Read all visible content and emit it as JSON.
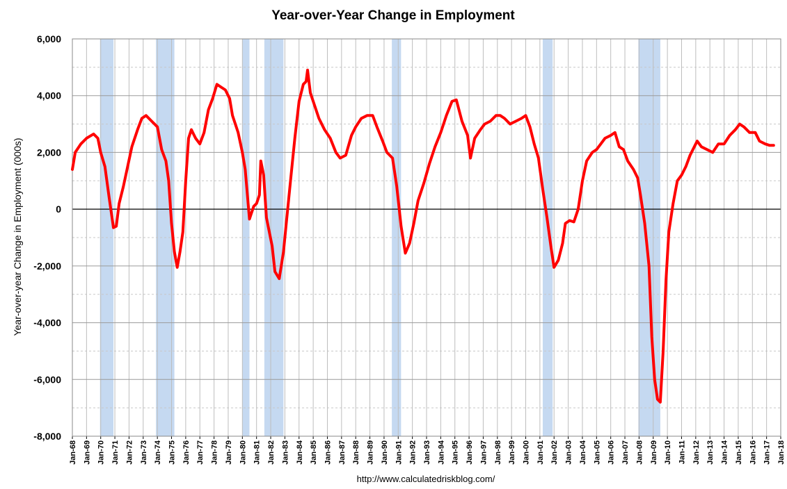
{
  "chart_data": {
    "type": "line",
    "title": "Year-over-Year Change in Employment",
    "y_label": "Year-over-year Change in Employment (000s)",
    "source": "http://www.calculatedriskblog.com/",
    "xlim": [
      1968,
      2018
    ],
    "ylim": [
      -8000,
      6000
    ],
    "yticks": [
      {
        "value": -8000,
        "label": "-8,000"
      },
      {
        "value": -6000,
        "label": "-6,000"
      },
      {
        "value": -4000,
        "label": "-4,000"
      },
      {
        "value": -2000,
        "label": "-2,000"
      },
      0,
      {
        "value": 2000,
        "label": "2,000"
      },
      {
        "value": 4000,
        "label": "4,000"
      },
      {
        "value": 6000,
        "label": "6,000"
      }
    ],
    "y_minor_ticks": [
      -7000,
      -5000,
      -3000,
      -1000,
      1000,
      3000,
      5000
    ],
    "xticks": [
      {
        "value": 1968,
        "label": "Jan-68"
      },
      {
        "value": 1969,
        "label": "Jan-69"
      },
      {
        "value": 1970,
        "label": "Jan-70"
      },
      {
        "value": 1971,
        "label": "Jan-71"
      },
      {
        "value": 1972,
        "label": "Jan-72"
      },
      {
        "value": 1973,
        "label": "Jan-73"
      },
      {
        "value": 1974,
        "label": "Jan-74"
      },
      {
        "value": 1975,
        "label": "Jan-75"
      },
      {
        "value": 1976,
        "label": "Jan-76"
      },
      {
        "value": 1977,
        "label": "Jan-77"
      },
      {
        "value": 1978,
        "label": "Jan-78"
      },
      {
        "value": 1979,
        "label": "Jan-79"
      },
      {
        "value": 1980,
        "label": "Jan-80"
      },
      {
        "value": 1981,
        "label": "Jan-81"
      },
      {
        "value": 1982,
        "label": "Jan-82"
      },
      {
        "value": 1983,
        "label": "Jan-83"
      },
      {
        "value": 1984,
        "label": "Jan-84"
      },
      {
        "value": 1985,
        "label": "Jan-85"
      },
      {
        "value": 1986,
        "label": "Jan-86"
      },
      {
        "value": 1987,
        "label": "Jan-87"
      },
      {
        "value": 1988,
        "label": "Jan-88"
      },
      {
        "value": 1989,
        "label": "Jan-89"
      },
      {
        "value": 1990,
        "label": "Jan-90"
      },
      {
        "value": 1991,
        "label": "Jan-91"
      },
      {
        "value": 1992,
        "label": "Jan-92"
      },
      {
        "value": 1993,
        "label": "Jan-93"
      },
      {
        "value": 1994,
        "label": "Jan-94"
      },
      {
        "value": 1995,
        "label": "Jan-95"
      },
      {
        "value": 1996,
        "label": "Jan-96"
      },
      {
        "value": 1997,
        "label": "Jan-97"
      },
      {
        "value": 1998,
        "label": "Jan-98"
      },
      {
        "value": 1999,
        "label": "Jan-99"
      },
      {
        "value": 2000,
        "label": "Jan-00"
      },
      {
        "value": 2001,
        "label": "Jan-01"
      },
      {
        "value": 2002,
        "label": "Jan-02"
      },
      {
        "value": 2003,
        "label": "Jan-03"
      },
      {
        "value": 2004,
        "label": "Jan-04"
      },
      {
        "value": 2005,
        "label": "Jan-05"
      },
      {
        "value": 2006,
        "label": "Jan-06"
      },
      {
        "value": 2007,
        "label": "Jan-07"
      },
      {
        "value": 2008,
        "label": "Jan-08"
      },
      {
        "value": 2009,
        "label": "Jan-09"
      },
      {
        "value": 2010,
        "label": "Jan-10"
      },
      {
        "value": 2011,
        "label": "Jan-11"
      },
      {
        "value": 2012,
        "label": "Jan-12"
      },
      {
        "value": 2013,
        "label": "Jan-13"
      },
      {
        "value": 2014,
        "label": "Jan-14"
      },
      {
        "value": 2015,
        "label": "Jan-15"
      },
      {
        "value": 2016,
        "label": "Jan-16"
      },
      {
        "value": 2017,
        "label": "Jan-17"
      },
      {
        "value": 2018,
        "label": "Jan-18"
      }
    ],
    "grid": true,
    "recession_color": "#c5d9f1",
    "recessions": [
      [
        1969.95,
        1970.9
      ],
      [
        1973.9,
        1975.2
      ],
      [
        1980.0,
        1980.5
      ],
      [
        1981.55,
        1982.9
      ],
      [
        1990.55,
        1991.2
      ],
      [
        2001.2,
        2001.9
      ],
      [
        2007.95,
        2009.5
      ]
    ],
    "x": [
      1968.0,
      1968.2,
      1968.6,
      1969.0,
      1969.5,
      1969.8,
      1970.0,
      1970.3,
      1970.6,
      1970.8,
      1970.9,
      1971.1,
      1971.3,
      1971.6,
      1971.9,
      1972.2,
      1972.6,
      1972.9,
      1973.2,
      1973.6,
      1974.0,
      1974.3,
      1974.6,
      1974.8,
      1975.0,
      1975.2,
      1975.4,
      1975.6,
      1975.8,
      1976.0,
      1976.2,
      1976.4,
      1976.7,
      1977.0,
      1977.3,
      1977.6,
      1977.9,
      1978.2,
      1978.5,
      1978.8,
      1979.1,
      1979.3,
      1979.7,
      1980.0,
      1980.2,
      1980.5,
      1980.8,
      1981.0,
      1981.2,
      1981.3,
      1981.5,
      1981.7,
      1981.9,
      1982.1,
      1982.3,
      1982.6,
      1982.9,
      1983.1,
      1983.4,
      1983.7,
      1984.0,
      1984.3,
      1984.5,
      1984.6,
      1984.8,
      1985.0,
      1985.4,
      1985.8,
      1986.2,
      1986.6,
      1986.9,
      1987.3,
      1987.7,
      1988.0,
      1988.4,
      1988.8,
      1989.2,
      1989.5,
      1989.9,
      1990.2,
      1990.6,
      1990.9,
      1991.2,
      1991.5,
      1991.8,
      1992.1,
      1992.4,
      1992.8,
      1993.2,
      1993.6,
      1994.0,
      1994.4,
      1994.8,
      1995.1,
      1995.5,
      1995.9,
      1996.1,
      1996.4,
      1996.8,
      1997.1,
      1997.5,
      1997.9,
      1998.2,
      1998.5,
      1998.9,
      1999.3,
      1999.7,
      2000.0,
      2000.3,
      2000.6,
      2000.9,
      2001.2,
      2001.5,
      2001.8,
      2002.0,
      2002.3,
      2002.6,
      2002.8,
      2003.1,
      2003.4,
      2003.7,
      2004.0,
      2004.3,
      2004.7,
      2005.0,
      2005.3,
      2005.6,
      2006.0,
      2006.3,
      2006.6,
      2006.9,
      2007.2,
      2007.6,
      2007.9,
      2008.1,
      2008.4,
      2008.7,
      2008.9,
      2009.1,
      2009.3,
      2009.5,
      2009.7,
      2009.9,
      2010.1,
      2010.4,
      2010.7,
      2011.0,
      2011.3,
      2011.6,
      2011.9,
      2012.1,
      2012.4,
      2012.8,
      2013.2,
      2013.6,
      2014.0,
      2014.4,
      2014.8,
      2015.1,
      2015.4,
      2015.8,
      2016.2,
      2016.5,
      2016.9,
      2017.2,
      2017.5
    ],
    "series": [
      {
        "color": "#ff0000",
        "values": [
          1400,
          2000,
          2300,
          2500,
          2650,
          2500,
          2000,
          1500,
          400,
          -300,
          -650,
          -600,
          200,
          800,
          1500,
          2200,
          2800,
          3200,
          3300,
          3100,
          2900,
          2100,
          1700,
          1000,
          -500,
          -1500,
          -2050,
          -1500,
          -800,
          1000,
          2500,
          2800,
          2500,
          2300,
          2700,
          3500,
          3900,
          4400,
          4300,
          4200,
          3900,
          3300,
          2700,
          2000,
          1400,
          -350,
          100,
          200,
          500,
          1700,
          1200,
          -300,
          -800,
          -1300,
          -2200,
          -2450,
          -1500,
          -500,
          1000,
          2500,
          3800,
          4400,
          4500,
          4900,
          4100,
          3800,
          3200,
          2800,
          2500,
          2000,
          1800,
          1900,
          2600,
          2900,
          3200,
          3300,
          3300,
          2900,
          2400,
          2000,
          1800,
          800,
          -600,
          -1550,
          -1200,
          -500,
          300,
          900,
          1600,
          2200,
          2700,
          3300,
          3800,
          3850,
          3100,
          2600,
          1800,
          2500,
          2800,
          3000,
          3100,
          3300,
          3300,
          3200,
          3000,
          3100,
          3200,
          3300,
          2900,
          2300,
          1800,
          700,
          -300,
          -1400,
          -2050,
          -1800,
          -1200,
          -500,
          -400,
          -450,
          0,
          1000,
          1700,
          2000,
          2100,
          2300,
          2500,
          2600,
          2700,
          2200,
          2100,
          1700,
          1400,
          1100,
          500,
          -500,
          -2000,
          -4500,
          -6000,
          -6700,
          -6800,
          -5000,
          -2500,
          -800,
          200,
          1000,
          1200,
          1500,
          1900,
          2200,
          2400,
          2200,
          2100,
          2000,
          2300,
          2300,
          2600,
          2800,
          3000,
          2900,
          2700,
          2700,
          2400,
          2300,
          2250,
          2250
        ]
      }
    ]
  }
}
